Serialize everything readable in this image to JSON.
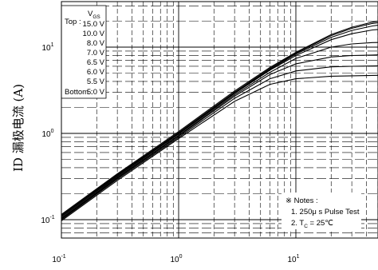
{
  "chart_data": {
    "type": "line",
    "x_scale": "log",
    "y_scale": "log",
    "xlim": [
      0.1,
      60
    ],
    "ylim": [
      0.07,
      25
    ],
    "x_ticks": [
      {
        "value": 0.1,
        "label": "10⁻¹"
      },
      {
        "value": 1,
        "label": "10⁰"
      },
      {
        "value": 10,
        "label": "10¹"
      }
    ],
    "y_ticks": [
      {
        "value": 0.1,
        "label": "10⁻¹"
      },
      {
        "value": 1,
        "label": "10⁰"
      },
      {
        "value": 10,
        "label": "10¹"
      }
    ],
    "ylabel": "ID 漏极电流 (A)",
    "xlabel": "",
    "grid": true,
    "legend_box": {
      "title": "V",
      "title_sub": "GS",
      "top_label": "Top :",
      "bottom_label": "Bottom :",
      "entries": [
        "15.0 V",
        "10.0 V",
        "8.0 V",
        "7.0 V",
        "6.5 V",
        "6.0 V",
        "5.5 V",
        "5.0 V"
      ]
    },
    "notes": {
      "title": "※ Notes :",
      "line1": "1. 250μ s Pulse Test",
      "line2_prefix": "2. T",
      "line2_sub": "C",
      "line2_suffix": " = 25℃"
    },
    "series": [
      {
        "vgs": 15.0,
        "points": [
          [
            0.1,
            0.115
          ],
          [
            0.3,
            0.34
          ],
          [
            1,
            1.05
          ],
          [
            3,
            3.1
          ],
          [
            6,
            5.8
          ],
          [
            10,
            8.7
          ],
          [
            20,
            14.0
          ],
          [
            30,
            17.0
          ],
          [
            45,
            19.5
          ],
          [
            60,
            20.8
          ]
        ]
      },
      {
        "vgs": 10.0,
        "points": [
          [
            0.1,
            0.112
          ],
          [
            0.3,
            0.332
          ],
          [
            1,
            1.02
          ],
          [
            3,
            3.0
          ],
          [
            6,
            5.65
          ],
          [
            10,
            8.5
          ],
          [
            20,
            13.6
          ],
          [
            30,
            16.5
          ],
          [
            45,
            18.8
          ],
          [
            60,
            19.8
          ]
        ]
      },
      {
        "vgs": 8.0,
        "points": [
          [
            0.1,
            0.11
          ],
          [
            0.3,
            0.325
          ],
          [
            1,
            1.0
          ],
          [
            3,
            2.95
          ],
          [
            6,
            5.5
          ],
          [
            10,
            8.3
          ],
          [
            20,
            13.0
          ],
          [
            30,
            15.6
          ],
          [
            45,
            17.6
          ],
          [
            60,
            18.5
          ]
        ]
      },
      {
        "vgs": 7.0,
        "points": [
          [
            0.1,
            0.107
          ],
          [
            0.3,
            0.318
          ],
          [
            1,
            0.98
          ],
          [
            3,
            2.9
          ],
          [
            6,
            5.4
          ],
          [
            10,
            8.0
          ],
          [
            20,
            12.2
          ],
          [
            30,
            14.3
          ],
          [
            45,
            15.8
          ],
          [
            60,
            16.3
          ]
        ]
      },
      {
        "vgs": 6.5,
        "points": [
          [
            0.1,
            0.104
          ],
          [
            0.3,
            0.31
          ],
          [
            1,
            0.95
          ],
          [
            3,
            2.8
          ],
          [
            6,
            5.1
          ],
          [
            10,
            7.4
          ],
          [
            20,
            10.0
          ],
          [
            30,
            10.9
          ],
          [
            45,
            11.3
          ],
          [
            60,
            11.4
          ]
        ]
      },
      {
        "vgs": 6.0,
        "points": [
          [
            0.1,
            0.102
          ],
          [
            0.3,
            0.303
          ],
          [
            1,
            0.93
          ],
          [
            3,
            2.7
          ],
          [
            6,
            4.8
          ],
          [
            10,
            6.4
          ],
          [
            20,
            7.7
          ],
          [
            30,
            8.0
          ],
          [
            45,
            8.1
          ],
          [
            60,
            8.2
          ]
        ]
      },
      {
        "vgs": 5.5,
        "points": [
          [
            0.1,
            0.1
          ],
          [
            0.3,
            0.295
          ],
          [
            1,
            0.9
          ],
          [
            3,
            2.55
          ],
          [
            6,
            4.3
          ],
          [
            10,
            5.3
          ],
          [
            20,
            5.9
          ],
          [
            30,
            6.0
          ],
          [
            45,
            6.05
          ],
          [
            60,
            6.1
          ]
        ]
      },
      {
        "vgs": 5.0,
        "points": [
          [
            0.1,
            0.097
          ],
          [
            0.3,
            0.285
          ],
          [
            1,
            0.87
          ],
          [
            3,
            2.35
          ],
          [
            6,
            3.7
          ],
          [
            10,
            4.3
          ],
          [
            20,
            4.6
          ],
          [
            30,
            4.65
          ],
          [
            45,
            4.7
          ],
          [
            60,
            4.72
          ]
        ]
      }
    ]
  }
}
